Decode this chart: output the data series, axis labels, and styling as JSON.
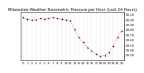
{
  "title": "Milwaukee Weather Barometric Pressure per Hour (Last 24 Hours)",
  "x_values": [
    0,
    1,
    2,
    3,
    4,
    5,
    6,
    7,
    8,
    9,
    10,
    11,
    12,
    13,
    14,
    15,
    16,
    17,
    18,
    19,
    20,
    21,
    22,
    23
  ],
  "y_values": [
    30.04,
    30.01,
    29.99,
    30.0,
    30.02,
    30.01,
    30.03,
    30.04,
    30.02,
    30.01,
    29.99,
    29.98,
    29.8,
    29.65,
    29.55,
    29.45,
    29.38,
    29.32,
    29.28,
    29.3,
    29.35,
    29.48,
    29.65,
    29.78
  ],
  "line_color": "#ff0000",
  "marker_color": "#000000",
  "bg_color": "#ffffff",
  "grid_color": "#999999",
  "ylim_min": 29.2,
  "ylim_max": 30.15,
  "ytick_values": [
    29.3,
    29.4,
    29.5,
    29.6,
    29.7,
    29.8,
    29.9,
    30.0,
    30.1
  ],
  "title_fontsize": 3.5,
  "tick_fontsize": 2.8,
  "x_tick_labels": [
    "0",
    "1",
    "2",
    "3",
    "4",
    "5",
    "6",
    "7",
    "8",
    "9",
    "10",
    "11",
    "12",
    "13",
    "14",
    "15",
    "16",
    "17",
    "18",
    "19",
    "20",
    "21",
    "22",
    "23"
  ]
}
